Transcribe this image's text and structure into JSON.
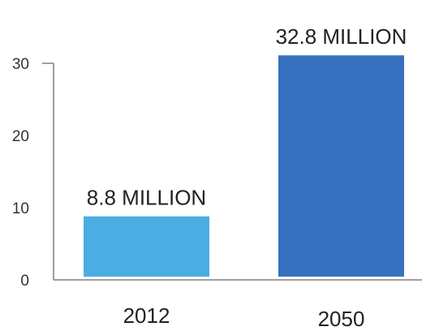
{
  "chart_data": {
    "type": "bar",
    "categories": [
      "2012",
      "2050"
    ],
    "values": [
      8.8,
      32.8
    ],
    "data_labels": [
      "8.8 MILLION",
      "32.8 MILLION"
    ],
    "bar_colors": [
      "#4aaee3",
      "#3870c0"
    ],
    "title": "",
    "xlabel": "",
    "ylabel": "",
    "ylim": [
      0,
      30
    ],
    "yticks": [
      0,
      10,
      20,
      30
    ],
    "grid": false,
    "legend": "none"
  }
}
